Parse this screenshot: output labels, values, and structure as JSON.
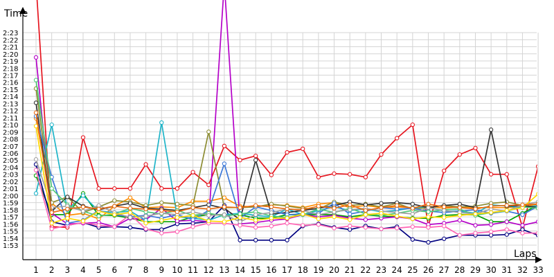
{
  "chart_data": {
    "type": "line",
    "title": "",
    "xlabel": "Laps",
    "ylabel": "Time",
    "x": [
      1,
      2,
      3,
      4,
      5,
      6,
      7,
      8,
      9,
      10,
      11,
      12,
      13,
      14,
      15,
      16,
      17,
      18,
      19,
      20,
      21,
      22,
      23,
      24,
      25,
      26,
      27,
      28,
      29,
      30,
      31,
      32,
      33
    ],
    "x_tick_labels": [
      "1",
      "2",
      "3",
      "4",
      "5",
      "6",
      "7",
      "8",
      "9",
      "10",
      "11",
      "12",
      "13",
      "14",
      "15",
      "16",
      "17",
      "18",
      "19",
      "20",
      "21",
      "22",
      "23",
      "24",
      "25",
      "26",
      "27",
      "28",
      "29",
      "30",
      "31",
      "32",
      "33"
    ],
    "y_unit": "seconds (m:ss)",
    "ylim": [
      112,
      145
    ],
    "y_ticks": [
      113,
      114,
      115,
      116,
      117,
      118,
      119,
      120,
      121,
      122,
      123,
      124,
      125,
      126,
      127,
      128,
      129,
      130,
      131,
      132,
      133,
      134,
      135,
      136,
      137,
      138,
      139,
      140,
      141,
      142,
      143
    ],
    "y_tick_labels": [
      "1:53",
      "1:54",
      "1:55",
      "1:56",
      "1:57",
      "1:58",
      "1:59",
      "2:00",
      "2:01",
      "2:02",
      "2:03",
      "2:04",
      "2:05",
      "2:06",
      "2:07",
      "2:08",
      "2:09",
      "2:10",
      "2:11",
      "2:12",
      "2:13",
      "2:14",
      "2:15",
      "2:16",
      "2:17",
      "2:18",
      "2:19",
      "2:20",
      "2:21",
      "2:22",
      "2:23"
    ],
    "grid": true,
    "legend": "none",
    "series": [
      {
        "color": "#e6141e",
        "values": [
          150,
          115.6,
          115.5,
          128.2,
          121,
          121,
          121,
          124.4,
          121,
          121,
          123.3,
          121.5,
          127,
          125,
          125.6,
          122.9,
          126.1,
          126.6,
          122.6,
          123.1,
          123,
          122.6,
          125.8,
          128.1,
          130,
          115.7,
          123.5,
          125.8,
          126.7,
          123,
          123,
          115.5,
          124.1
        ]
      },
      {
        "color": "#00a000",
        "values": [
          122.8,
          117.3,
          117.3,
          120.3,
          117.2,
          117.2,
          116.8,
          116.3,
          116.3,
          116.3,
          117,
          117.3,
          117.3,
          117.3,
          116.8,
          116.8,
          117.3,
          117.3,
          117.3,
          117.3,
          117,
          117.3,
          117.1,
          117,
          116.8,
          116.8,
          117.2,
          117.3,
          117.3,
          116.3,
          116.3,
          117.5,
          118.7
        ]
      },
      {
        "color": "#000080",
        "values": [
          124.4,
          116.3,
          115.8,
          116.2,
          115.5,
          115.6,
          115.5,
          115.2,
          115.2,
          116,
          116.1,
          116.3,
          118.6,
          113.7,
          113.7,
          113.7,
          113.7,
          115.7,
          116,
          115.5,
          115.2,
          115.7,
          115.3,
          115.6,
          113.8,
          113.4,
          113.9,
          114.4,
          114.4,
          114.4,
          114.5,
          115.2,
          114.4
        ]
      },
      {
        "color": "#ff8c00",
        "values": [
          130.9,
          118.9,
          117.2,
          117.5,
          116.7,
          118.5,
          119.7,
          118.3,
          118.4,
          118.3,
          119.2,
          119.2,
          119.7,
          118.5,
          118.4,
          118.7,
          118.6,
          118.3,
          118.8,
          119,
          118.3,
          118.6,
          118.3,
          118.4,
          118.3,
          118.5,
          118.2,
          118.4,
          118.3,
          118.3,
          118.3,
          118.4,
          118.8
        ]
      },
      {
        "color": "#b400c8",
        "values": [
          139.5,
          117.5,
          116,
          116.1,
          116.2,
          115.6,
          116.8,
          116.6,
          118.2,
          116.4,
          116.5,
          116.3,
          150,
          116,
          116.2,
          116.5,
          116.7,
          117.3,
          117,
          117.2,
          116.8,
          116.6,
          116.8,
          117,
          116.7,
          115.9,
          116.1,
          116.5,
          115.8,
          115.9,
          116.3,
          115.8,
          116.3
        ]
      },
      {
        "color": "#1eb4c8",
        "values": [
          120.3,
          130,
          118,
          120,
          117.8,
          117.6,
          117.8,
          116.5,
          130.3,
          117,
          116.8,
          116.5,
          117.3,
          117.5,
          117.2,
          117,
          118.1,
          117.3,
          117.9,
          118.4,
          117.9,
          118.1,
          117.7,
          117.9,
          118.3,
          118.4,
          117.8,
          117.8,
          117.5,
          118.7,
          118.5,
          118.3,
          118.6
        ]
      },
      {
        "color": "#8c8c32",
        "values": [
          135.1,
          119,
          119.8,
          117.6,
          118.4,
          119.3,
          119.1,
          118.6,
          119,
          118.8,
          118.6,
          129,
          118.3,
          118.3,
          118.4,
          118.8,
          118.5,
          118.2,
          118.1,
          119.1,
          118.6,
          118.8,
          118.4,
          118.9,
          118.1,
          118.3,
          118.6,
          118.4,
          118.5,
          118.9,
          119.1,
          118.6,
          118.3
        ]
      },
      {
        "color": "#323232",
        "values": [
          133.1,
          117.8,
          119.8,
          118.5,
          118,
          118.5,
          118.9,
          118.2,
          118.1,
          117.9,
          118.3,
          118.7,
          118.2,
          116.6,
          125,
          117.4,
          117.6,
          117.9,
          118.2,
          118.6,
          119.1,
          118.7,
          118.9,
          119,
          118.8,
          118.3,
          118.6,
          118.8,
          118.3,
          129.3,
          118.5,
          118.6,
          118.3
        ]
      },
      {
        "color": "#ff64b4",
        "values": [
          123.6,
          115.3,
          115.8,
          116.2,
          115.8,
          115.6,
          117.3,
          115.3,
          114.7,
          114.9,
          115.6,
          116.1,
          116.1,
          115.8,
          115.5,
          115.7,
          116.1,
          115.8,
          115.9,
          115.4,
          115.7,
          115.5,
          115.3,
          115.4,
          115.6,
          115.5,
          115.7,
          114.4,
          114.7,
          114.9,
          115.2,
          114.7,
          114.7
        ]
      },
      {
        "color": "#3c78d8",
        "values": [
          131.2,
          122.6,
          116.1,
          116.5,
          117.9,
          117.3,
          117,
          117.2,
          116.8,
          117.3,
          116.6,
          117.9,
          124.5,
          116.8,
          118.4,
          117.9,
          117.3,
          117.4,
          117.5,
          118.9,
          117.4,
          117.8,
          118.3,
          118.1,
          118.2,
          117.8,
          117.6,
          117.8,
          118,
          117.5,
          117.8,
          117.3,
          118.5
        ]
      },
      {
        "color": "#50c878",
        "values": [
          136.3,
          121,
          118.7,
          117.8,
          117.1,
          117.4,
          118.2,
          117.7,
          117.4,
          117.9,
          117.2,
          117.5,
          117.1,
          117.4,
          117.7,
          117.1,
          116.9,
          117.3,
          118.1,
          117.6,
          118.2,
          117.4,
          117.2,
          117.5,
          117.9,
          117.7,
          118,
          118.1,
          117.2,
          117.6,
          117.8,
          118.4,
          118.2
        ]
      },
      {
        "color": "#a0a0a0",
        "values": [
          125.1,
          118.3,
          118.5,
          117.8,
          118.6,
          117.6,
          116.9,
          117.1,
          117.5,
          117.3,
          117.7,
          117.2,
          117.3,
          116.3,
          117.3,
          117.6,
          118.1,
          117.9,
          117.3,
          117.7,
          118,
          118.2,
          117.8,
          117.6,
          117.4,
          118.3,
          117.9,
          117.6,
          117.4,
          118.1,
          117.8,
          118.7,
          119.1
        ]
      },
      {
        "color": "#ffd700",
        "values": [
          129.8,
          116.1,
          116.8,
          116.4,
          117.8,
          117.3,
          117.6,
          116.1,
          116.5,
          116.9,
          117.2,
          116.4,
          116.3,
          116.9,
          116.5,
          116.8,
          116.8,
          117.4,
          116.7,
          117,
          116.6,
          117.3,
          117.5,
          117.1,
          116.7,
          117,
          116.9,
          117.2,
          117.4,
          117.6,
          117.9,
          118.3,
          120.2
        ]
      },
      {
        "color": "#e86a10",
        "values": [
          131.7,
          117.6,
          118.1,
          118.4,
          118.1,
          118.5,
          118.2,
          118.1,
          117.9,
          117.7,
          118.3,
          118.1,
          118.4,
          118.3,
          118.6,
          118.4,
          118.1,
          118,
          118.5,
          118.2,
          118.7,
          117.9,
          118.3,
          118.6,
          118.2,
          118.8,
          118.4,
          118.3,
          118.1,
          118.5,
          118.6,
          118.7,
          118.8
        ]
      }
    ]
  }
}
